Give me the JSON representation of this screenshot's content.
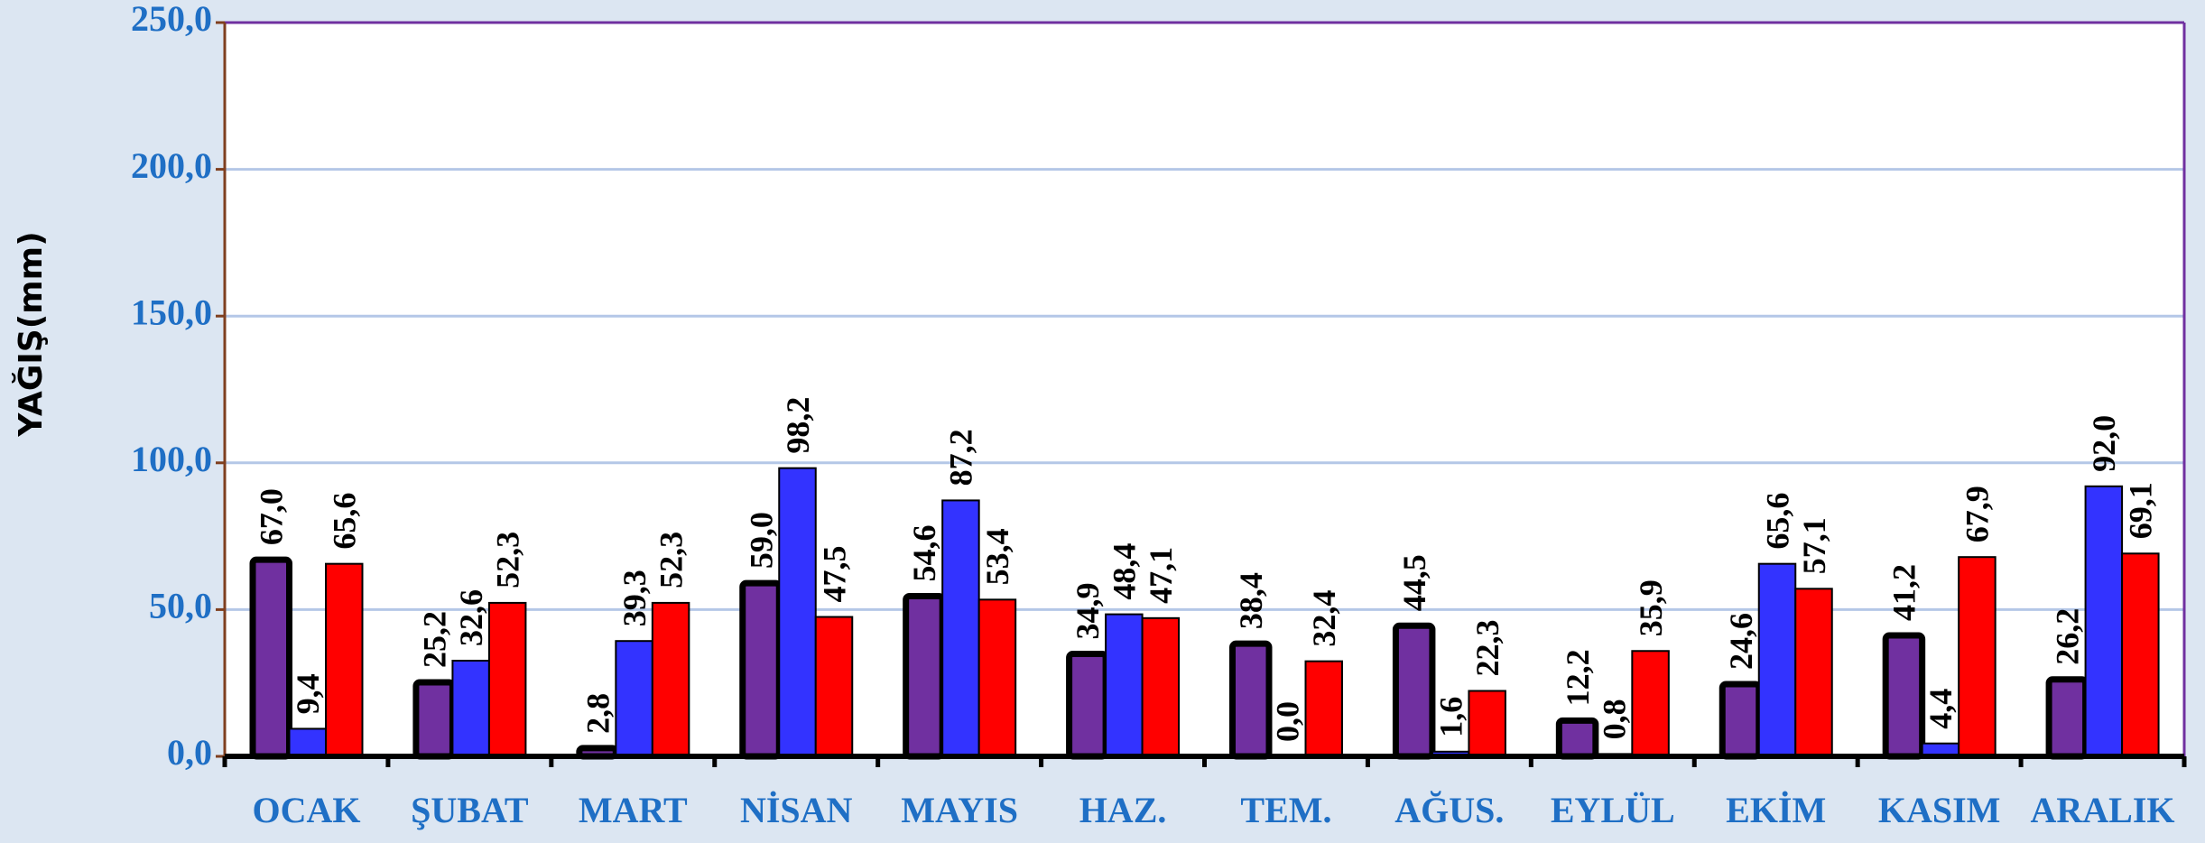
{
  "chart_data": {
    "type": "bar",
    "y_label": "YAĞIŞ(mm)",
    "categories": [
      "OCAK",
      "ŞUBAT",
      "MART",
      "NİSAN",
      "MAYIS",
      "HAZ.",
      "TEM.",
      "AĞUS.",
      "EYLÜL",
      "EKİM",
      "KASIM",
      "ARALIK"
    ],
    "series": [
      {
        "color": "#7030a0",
        "values": [
          67.0,
          25.2,
          2.8,
          59.0,
          54.6,
          34.9,
          38.4,
          44.5,
          12.2,
          24.6,
          41.2,
          26.2
        ],
        "value_labels": [
          "67,0",
          "25,2",
          "2,8",
          "59,0",
          "54,6",
          "34,9",
          "38,4",
          "44,5",
          "12,2",
          "24,6",
          "41,2",
          "26,2"
        ]
      },
      {
        "color": "#3333ff",
        "values": [
          9.4,
          32.6,
          39.3,
          98.2,
          87.2,
          48.4,
          0.0,
          1.6,
          0.8,
          65.6,
          4.4,
          92.0
        ],
        "value_labels": [
          "9,4",
          "32,6",
          "39,3",
          "98,2",
          "87,2",
          "48,4",
          "0,0",
          "1,6",
          "0,8",
          "65,6",
          "4,4",
          "92,0"
        ]
      },
      {
        "color": "#ff0000",
        "values": [
          65.6,
          52.3,
          52.3,
          47.5,
          53.4,
          47.1,
          32.4,
          22.3,
          35.9,
          57.1,
          67.9,
          69.1
        ],
        "value_labels": [
          "65,6",
          "52,3",
          "52,3",
          "47,5",
          "53,4",
          "47,1",
          "32,4",
          "22,3",
          "35,9",
          "57,1",
          "67,9",
          "69,1"
        ]
      }
    ],
    "ylim": [
      0,
      250
    ],
    "yticks": [
      {
        "value": 0,
        "label": "0,0"
      },
      {
        "value": 50,
        "label": "50,0"
      },
      {
        "value": 100,
        "label": "100,0"
      },
      {
        "value": 150,
        "label": "150,0"
      },
      {
        "value": 200,
        "label": "200,0"
      },
      {
        "value": 250,
        "label": "250,0"
      }
    ],
    "grid": true
  }
}
